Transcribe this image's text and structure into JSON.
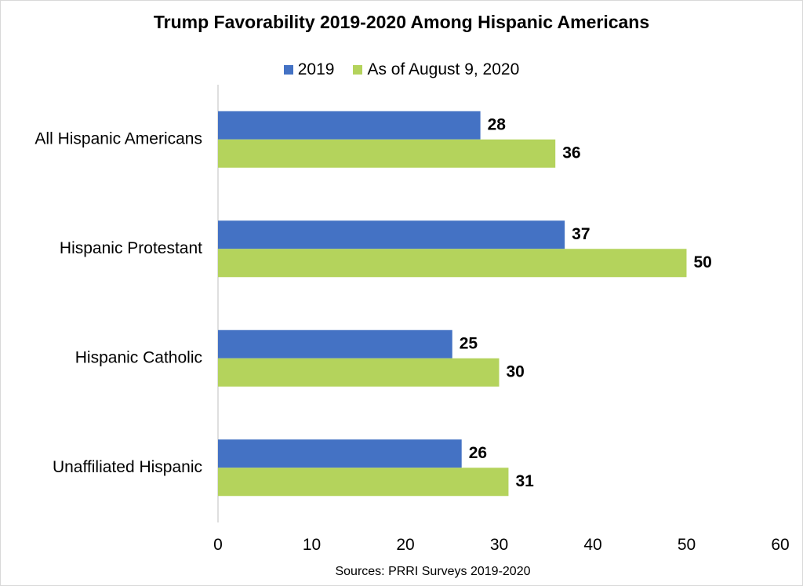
{
  "colors": {
    "series_2019": "#4472C4",
    "series_2020": "#B4D35C",
    "axis": "#bfbfbf"
  },
  "legend": {
    "series_2019_label": "2019",
    "series_2020_label": "As of August 9, 2020"
  },
  "source": "Sources: PRRI Surveys 2019-2020",
  "chart_data": {
    "type": "bar",
    "orientation": "horizontal",
    "title": "Trump Favorability 2019-2020 Among Hispanic Americans",
    "xlabel": "",
    "ylabel": "",
    "categories": [
      "All Hispanic Americans",
      "Hispanic Protestant",
      "Hispanic Catholic",
      "Unaffiliated Hispanic"
    ],
    "series": [
      {
        "name": "2019",
        "values": [
          28,
          37,
          25,
          26
        ]
      },
      {
        "name": "As of August 9, 2020",
        "values": [
          36,
          50,
          30,
          31
        ]
      }
    ],
    "xlim": [
      0,
      60
    ],
    "xticks": [
      0,
      10,
      20,
      30,
      40,
      50,
      60
    ],
    "grid": false,
    "legend_position": "top"
  }
}
